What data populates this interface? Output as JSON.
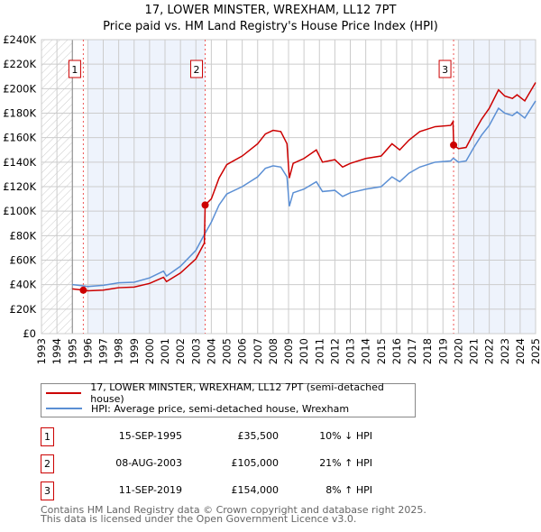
{
  "title": "17, LOWER MINSTER, WREXHAM, LL12 7PT",
  "subtitle": "Price paid vs. HM Land Registry's House Price Index (HPI)",
  "chart_data": {
    "type": "line",
    "xlim": [
      1993,
      2025
    ],
    "ylim": [
      0,
      240000
    ],
    "x_ticks": [
      "1993",
      "1994",
      "1995",
      "1996",
      "1997",
      "1998",
      "1999",
      "2000",
      "2001",
      "2002",
      "2003",
      "2004",
      "2005",
      "2006",
      "2007",
      "2008",
      "2009",
      "2010",
      "2011",
      "2012",
      "2013",
      "2014",
      "2015",
      "2016",
      "2017",
      "2018",
      "2019",
      "2020",
      "2021",
      "2022",
      "2023",
      "2024",
      "2025"
    ],
    "y_ticks": [
      "£0",
      "£20K",
      "£40K",
      "£60K",
      "£80K",
      "£100K",
      "£120K",
      "£140K",
      "£160K",
      "£180K",
      "£200K",
      "£220K",
      "£240K"
    ],
    "series": [
      {
        "name": "17, LOWER MINSTER, WREXHAM, LL12 7PT (semi-detached house)",
        "color": "#cc0000",
        "x": [
          1995,
          1995.7,
          1996,
          1997,
          1998,
          1999,
          2000,
          2000.9,
          2001.1,
          2002,
          2003,
          2003.55,
          2003.6,
          2004,
          2004.5,
          2005,
          2006,
          2007,
          2007.5,
          2008,
          2008.5,
          2008.9,
          2009.05,
          2009.3,
          2010,
          2010.8,
          2011.2,
          2012,
          2012.5,
          2013,
          2014,
          2015,
          2015.7,
          2016.2,
          2016.8,
          2017.5,
          2018.5,
          2019.5,
          2019.65,
          2019.7,
          2020,
          2020.5,
          2021,
          2021.5,
          2022,
          2022.6,
          2023,
          2023.5,
          2023.8,
          2024.3,
          2025
        ],
        "y": [
          36500,
          35500,
          35000,
          35500,
          37500,
          38000,
          41000,
          46000,
          42500,
          49500,
          61000,
          74000,
          105000,
          110000,
          127000,
          138000,
          145000,
          155000,
          163000,
          166000,
          165000,
          155000,
          127000,
          139000,
          143000,
          150000,
          140000,
          142000,
          136000,
          139000,
          143000,
          145000,
          155000,
          150000,
          158000,
          165000,
          169000,
          170000,
          173000,
          154000,
          151000,
          152000,
          164000,
          175000,
          184000,
          199000,
          194000,
          192000,
          195000,
          190000,
          205000
        ]
      },
      {
        "name": "HPI: Average price, semi-detached house, Wrexham",
        "color": "#5b8fd4",
        "x": [
          1995,
          1995.7,
          1996,
          1997,
          1998,
          1999,
          2000,
          2000.9,
          2001.1,
          2002,
          2003,
          2003.55,
          2003.6,
          2004,
          2004.5,
          2005,
          2006,
          2007,
          2007.5,
          2008,
          2008.5,
          2008.9,
          2009.05,
          2009.3,
          2010,
          2010.8,
          2011.2,
          2012,
          2012.5,
          2013,
          2014,
          2015,
          2015.7,
          2016.2,
          2016.8,
          2017.5,
          2018.5,
          2019.5,
          2019.65,
          2019.7,
          2020,
          2020.5,
          2021,
          2021.5,
          2022,
          2022.6,
          2023,
          2023.5,
          2023.8,
          2024.3,
          2025
        ],
        "y": [
          40000,
          39000,
          38500,
          39500,
          41500,
          42000,
          45500,
          51000,
          47000,
          55000,
          68000,
          81000,
          82000,
          91000,
          105000,
          114000,
          120000,
          128000,
          135000,
          137000,
          136000,
          128000,
          104000,
          115000,
          118000,
          124000,
          116000,
          117000,
          112000,
          115000,
          118000,
          120000,
          128000,
          124000,
          131000,
          136000,
          140000,
          141000,
          143000,
          143000,
          140000,
          141000,
          152000,
          162000,
          170000,
          184000,
          180000,
          178000,
          181000,
          176000,
          190000
        ]
      }
    ],
    "sales": [
      {
        "label": "1",
        "x": 1995.71,
        "y": 35500
      },
      {
        "label": "2",
        "x": 2003.6,
        "y": 105000
      },
      {
        "label": "3",
        "x": 2019.69,
        "y": 154000
      }
    ]
  },
  "legend": {
    "red": "17, LOWER MINSTER, WREXHAM, LL12 7PT (semi-detached house)",
    "blue": "HPI: Average price, semi-detached house, Wrexham"
  },
  "transactions": [
    {
      "n": "1",
      "date": "15-SEP-1995",
      "price": "£35,500",
      "hpi": "10% ↓ HPI"
    },
    {
      "n": "2",
      "date": "08-AUG-2003",
      "price": "£105,000",
      "hpi": "21% ↑ HPI"
    },
    {
      "n": "3",
      "date": "11-SEP-2019",
      "price": "£154,000",
      "hpi": "8% ↑ HPI"
    }
  ],
  "footer": [
    "Contains HM Land Registry data © Crown copyright and database right 2025.",
    "This data is licensed under the Open Government Licence v3.0."
  ]
}
